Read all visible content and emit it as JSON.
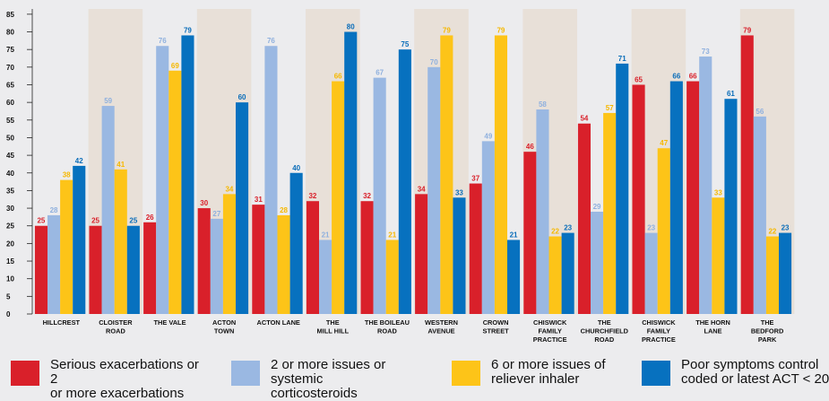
{
  "chart_data": {
    "type": "bar",
    "categories": [
      "HILLCREST",
      "CLOISTER ROAD",
      "THE VALE",
      "ACTON TOWN",
      "ACTON LANE",
      "THE MILL HILL",
      "THE BOILEAU ROAD",
      "WESTERN AVENUE",
      "CROWN STREET",
      "CHISWICK FAMILY PRACTICE",
      "THE CHURCHFIELD ROAD",
      "CHISWICK FAMILY PRACTICE",
      "THE HORN LANE",
      "THE BEDFORD PARK"
    ],
    "category_lines": [
      [
        "HILLCREST"
      ],
      [
        "CLOISTER",
        "ROAD"
      ],
      [
        "THE VALE"
      ],
      [
        "ACTON",
        "TOWN"
      ],
      [
        "ACTON LANE"
      ],
      [
        "THE",
        "MILL HILL"
      ],
      [
        "THE BOILEAU",
        "ROAD"
      ],
      [
        "WESTERN",
        "AVENUE"
      ],
      [
        "CROWN",
        "STREET"
      ],
      [
        "CHISWICK",
        "FAMILY",
        "PRACTICE"
      ],
      [
        "THE",
        "CHURCHFIELD",
        "ROAD"
      ],
      [
        "CHISWICK",
        "FAMILY",
        "PRACTICE"
      ],
      [
        "THE HORN",
        "LANE"
      ],
      [
        "THE",
        "BEDFORD",
        "PARK"
      ]
    ],
    "series": [
      {
        "name": "Serious exacerbations or 2 or more exacerbations",
        "legend_lines": [
          "Serious exacerbations or 2",
          "or more exacerbations"
        ],
        "color": "#d9202a",
        "label_color": "#d9202a",
        "values": [
          25,
          25,
          26,
          30,
          31,
          32,
          32,
          34,
          37,
          46,
          54,
          65,
          66,
          79
        ]
      },
      {
        "name": "2 or more issues or systemic corticosteroids",
        "legend_lines": [
          "2 or more issues or systemic",
          "corticosteroids"
        ],
        "color": "#9ab8e2",
        "label_color": "#8fb0de",
        "values": [
          28,
          59,
          76,
          27,
          76,
          21,
          67,
          70,
          49,
          58,
          29,
          23,
          73,
          56
        ]
      },
      {
        "name": "6 or more issues of reliever inhaler",
        "legend_lines": [
          "6 or more issues of",
          "reliever inhaler"
        ],
        "color": "#fdc418",
        "label_color": "#f6b800",
        "values": [
          38,
          41,
          69,
          34,
          28,
          66,
          21,
          79,
          79,
          22,
          57,
          47,
          33,
          22
        ]
      },
      {
        "name": "Poor symptoms control coded or latest ACT < 20",
        "legend_lines": [
          "Poor symptoms control",
          "coded or latest ACT < 20"
        ],
        "color": "#0771bf",
        "label_color": "#0a6db9",
        "values": [
          42,
          25,
          79,
          60,
          40,
          80,
          75,
          33,
          21,
          23,
          71,
          66,
          61,
          23
        ]
      }
    ],
    "yticks": [
      0,
      5,
      10,
      15,
      20,
      25,
      30,
      35,
      40,
      45,
      50,
      55,
      60,
      65,
      70,
      75,
      80,
      85
    ],
    "ylim": [
      0,
      87
    ],
    "grid": false,
    "alternating_band_color": "#e8e0d8",
    "legend_position": "bottom",
    "title": "",
    "xlabel": "",
    "ylabel": ""
  }
}
